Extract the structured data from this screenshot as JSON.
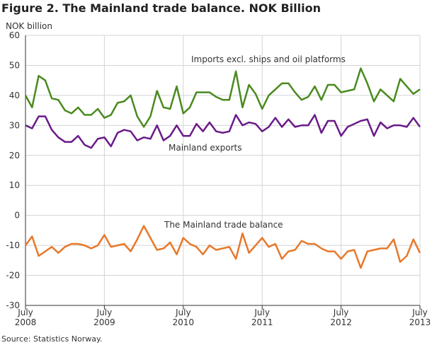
{
  "chart_data": {
    "type": "line",
    "title": "Figure 2. The Mainland trade balance. NOK Billion",
    "y_label": "NOK billion",
    "source": "Source: Statistics Norway.",
    "categories": [
      "July 2008",
      null,
      null,
      null,
      null,
      null,
      null,
      null,
      null,
      null,
      null,
      null,
      "July 2009",
      null,
      null,
      null,
      null,
      null,
      null,
      null,
      null,
      null,
      null,
      null,
      "July 2010",
      null,
      null,
      null,
      null,
      null,
      null,
      null,
      null,
      null,
      null,
      null,
      "July 2011",
      null,
      null,
      null,
      null,
      null,
      null,
      null,
      null,
      null,
      null,
      null,
      "July 2012",
      null,
      null,
      null,
      null,
      null,
      null,
      null,
      null,
      null,
      null,
      null,
      "July 2013"
    ],
    "ylim": [
      -30,
      60
    ],
    "yticks": [
      -30,
      -20,
      -10,
      0,
      10,
      20,
      30,
      40,
      50,
      60
    ],
    "grid": true,
    "series": [
      {
        "name": "Imports excl. ships and oil platforms",
        "color": "#4a8a1e",
        "values": [
          40,
          36,
          46.5,
          45,
          39,
          38.5,
          35,
          34,
          36,
          33.5,
          33.5,
          35.5,
          32.5,
          33.5,
          37.5,
          38,
          40,
          33,
          29.5,
          33,
          41.5,
          36,
          35.5,
          43,
          34,
          36,
          41,
          41,
          41,
          39.5,
          38.5,
          38.5,
          48,
          36,
          43.5,
          40.5,
          35.5,
          40,
          42,
          44,
          44,
          41,
          38.5,
          39.5,
          43,
          38.5,
          43.5,
          43.5,
          41,
          41.5,
          42,
          49,
          44,
          38,
          42,
          40,
          38,
          45.5,
          43,
          40.5,
          42
        ]
      },
      {
        "name": "Mainland exports",
        "color": "#6a1b8a",
        "values": [
          30,
          29,
          33,
          33,
          28.5,
          26,
          24.5,
          24.5,
          26.5,
          23.5,
          22.5,
          25.5,
          26,
          23,
          27.5,
          28.5,
          28,
          25,
          26,
          25.5,
          30,
          25,
          26.5,
          30,
          26.5,
          26.5,
          30.5,
          28,
          31,
          28,
          27.5,
          28,
          33.5,
          30,
          31,
          30.5,
          28,
          29.5,
          32.5,
          29.5,
          32,
          29.5,
          30,
          30,
          33.5,
          27.5,
          31.5,
          31.5,
          26.5,
          29.5,
          30.5,
          31.5,
          32,
          26.5,
          31,
          29,
          30,
          30,
          29.5,
          32.5,
          29.5
        ]
      },
      {
        "name": "The Mainland trade balance",
        "color": "#e8782a",
        "values": [
          -10,
          -7,
          -13.5,
          -12,
          -10.5,
          -12.5,
          -10.5,
          -9.5,
          -9.5,
          -10,
          -11,
          -10,
          -6.5,
          -10.5,
          -10,
          -9.5,
          -12,
          -8,
          -3.5,
          -7.5,
          -11.5,
          -11,
          -9,
          -13,
          -7.5,
          -9.5,
          -10.5,
          -13,
          -10,
          -11.5,
          -11,
          -10.5,
          -14.5,
          -6,
          -12.5,
          -10,
          -7.5,
          -10.5,
          -9.5,
          -14.5,
          -12,
          -11.5,
          -8.5,
          -9.5,
          -9.5,
          -11,
          -12,
          -12,
          -14.5,
          -12,
          -11.5,
          -17.5,
          -12,
          -11.5,
          -11,
          -11,
          -8,
          -15.5,
          -13.5,
          -8,
          -12.5
        ]
      }
    ]
  }
}
